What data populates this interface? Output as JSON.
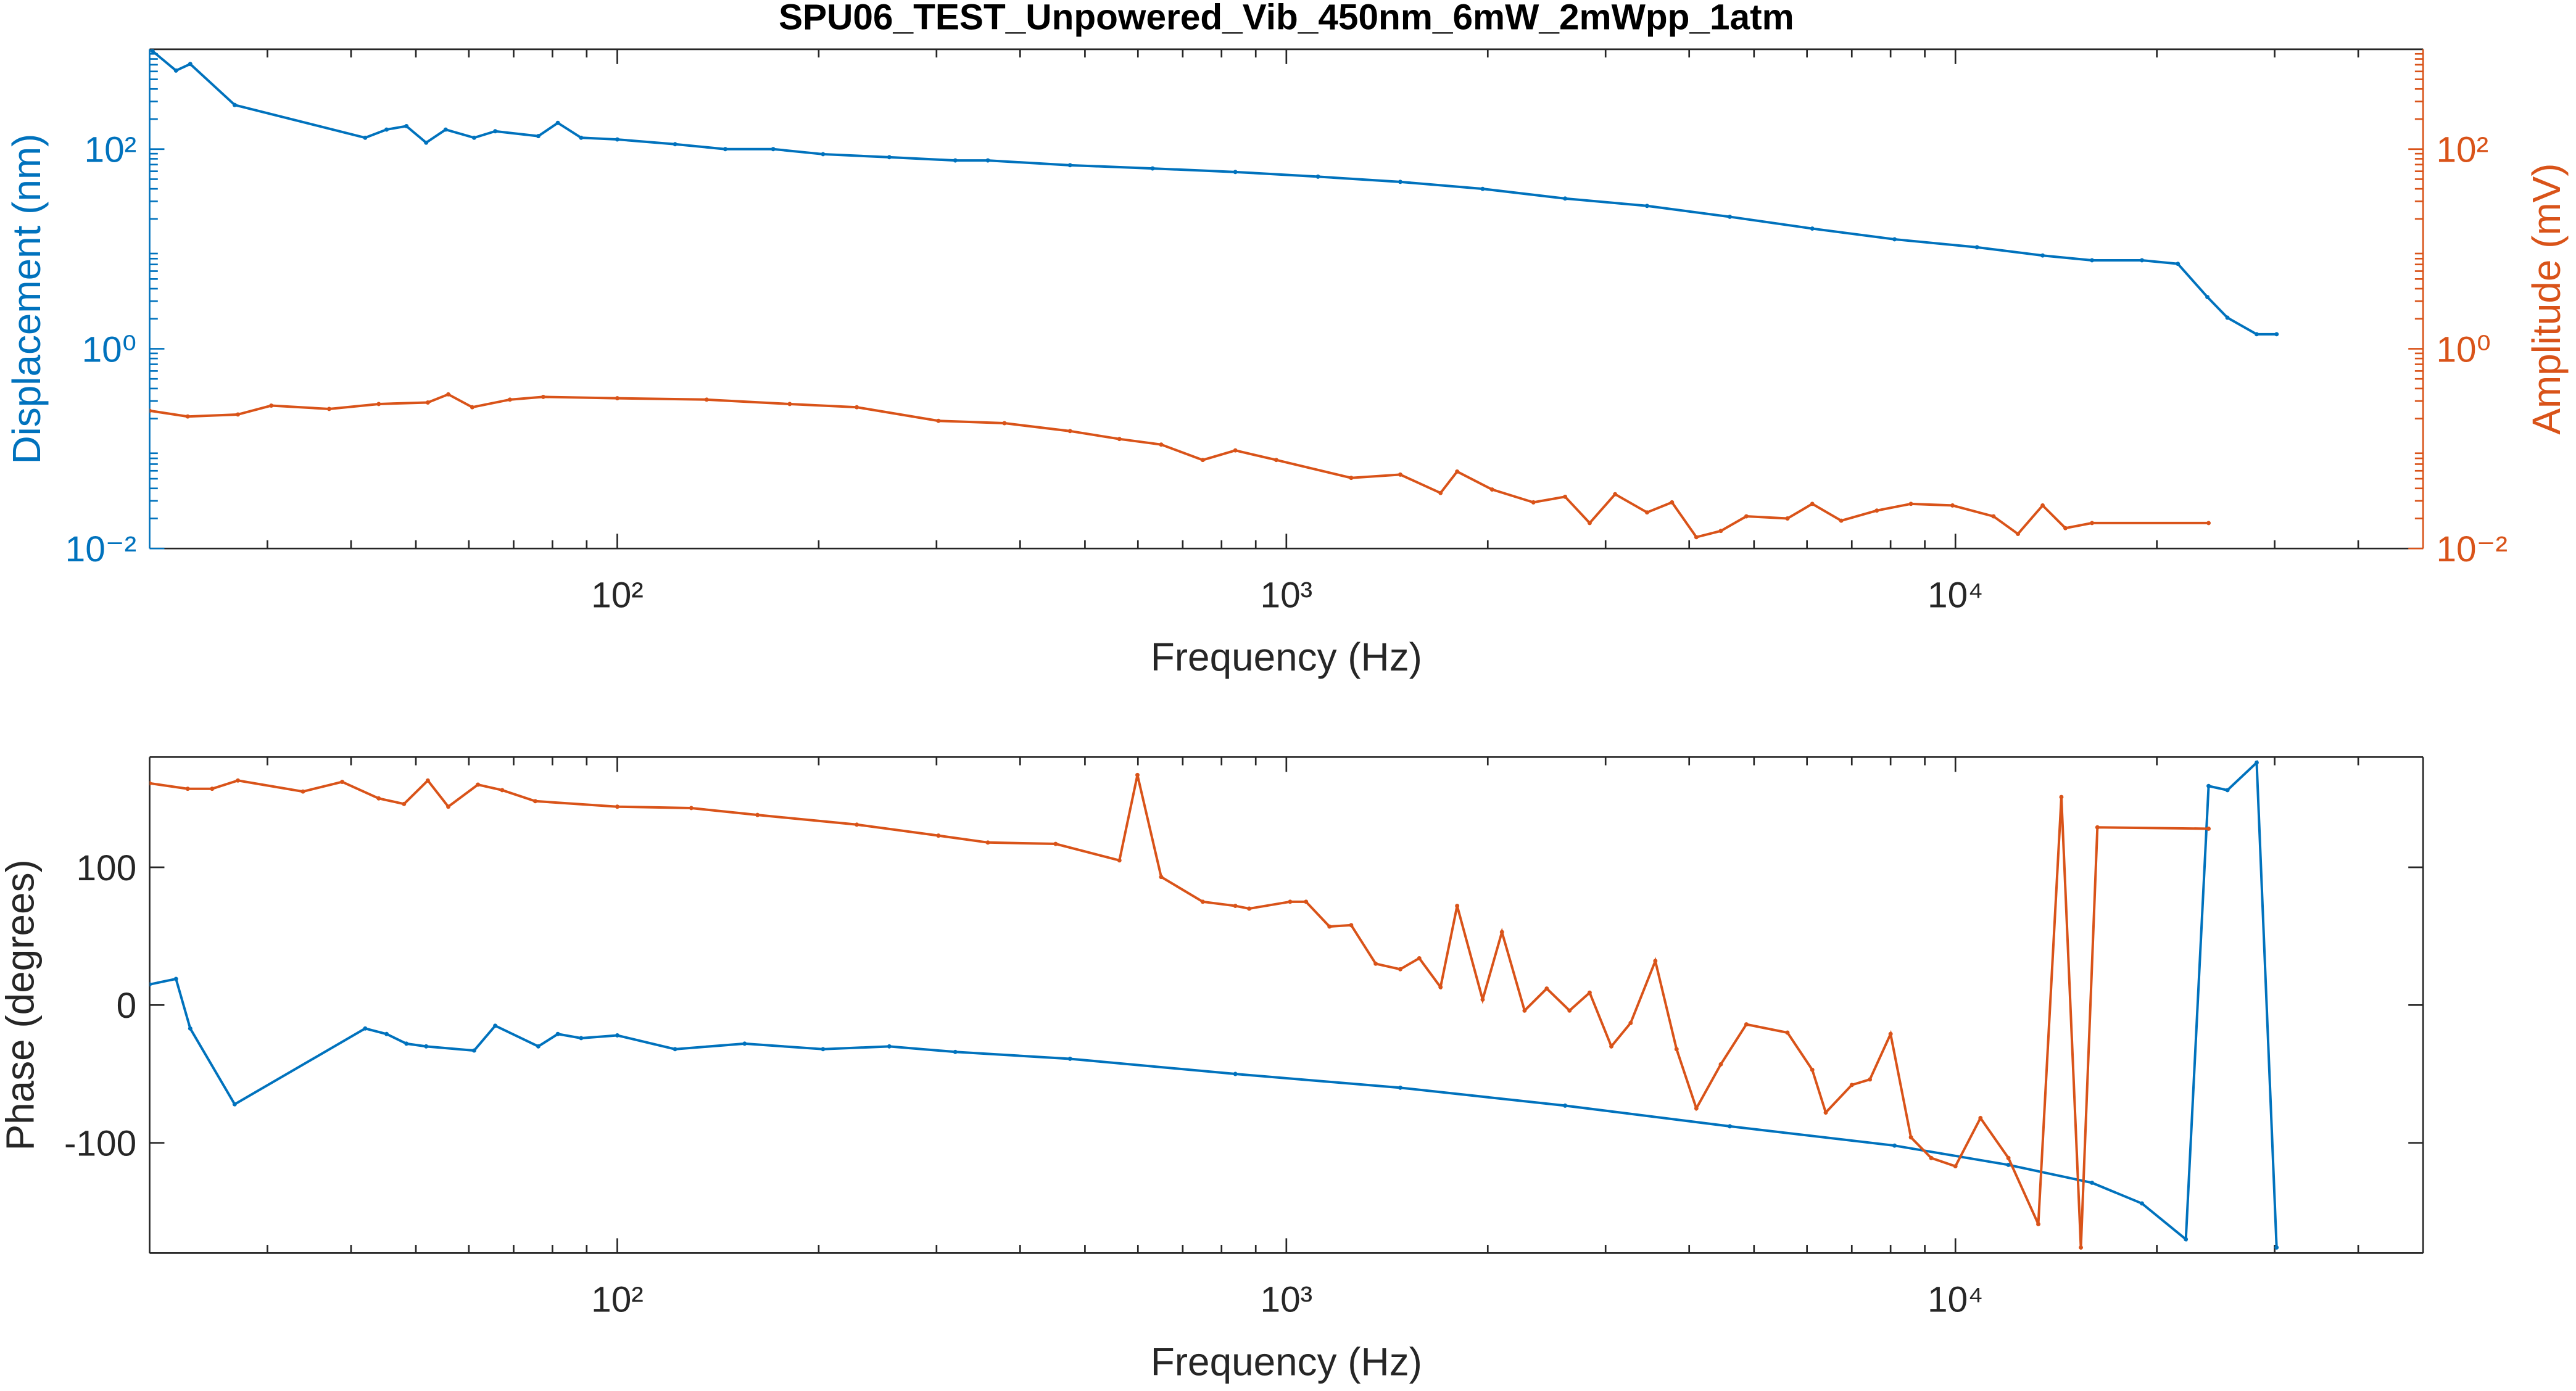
{
  "chart_data": [
    {
      "type": "line",
      "title": "SPU06_TEST_Unpowered_Vib_450nm_6mW_2mWpp_1atm",
      "xlabel": "Frequency (Hz)",
      "ylabel": "Displacement (nm)",
      "y2label": "Amplitude (mV)",
      "xscale": "log",
      "yscale": "log",
      "y2scale": "log",
      "xlim": [
        20,
        50000
      ],
      "xticks": [
        {
          "value": 100,
          "label": "10²"
        },
        {
          "value": 1000,
          "label": "10³"
        },
        {
          "value": 10000,
          "label": "10⁴"
        }
      ],
      "ylim": [
        0.01,
        1000
      ],
      "yticks": [
        {
          "value": 0.01,
          "label": "10⁻²"
        },
        {
          "value": 1,
          "label": "10⁰"
        },
        {
          "value": 100,
          "label": "10²"
        }
      ],
      "y2lim": [
        0.01,
        1000
      ],
      "y2ticks": [
        {
          "value": 0.01,
          "label": "10⁻²"
        },
        {
          "value": 1,
          "label": "10⁰"
        },
        {
          "value": 100,
          "label": "10²"
        }
      ],
      "series": [
        {
          "color": "#0072BD",
          "axis": "y",
          "x": [
            20.2,
            21.9,
            23,
            26.8,
            42,
            45.2,
            48.4,
            51.8,
            55.4,
            61.1,
            65.7,
            76.2,
            81.5,
            88.3,
            100,
            122,
            145,
            171,
            203,
            255,
            320,
            358,
            475,
            631,
            839,
            1115,
            1480,
            1965,
            2610,
            3460,
            4600,
            6110,
            8110,
            10770,
            13500,
            16000,
            19000,
            21500,
            23800,
            25500,
            28200,
            30200
          ],
          "values": [
            960,
            612,
            712,
            277,
            130,
            157,
            170,
            116,
            157,
            130,
            151,
            135,
            183,
            130,
            125,
            112,
            100,
            100,
            89,
            83,
            77,
            77,
            69,
            64,
            59,
            53,
            47,
            40,
            32,
            27,
            21,
            16,
            12.5,
            10.4,
            8.6,
            7.7,
            7.7,
            7.1,
            3.3,
            2.05,
            1.4,
            1.4
          ]
        },
        {
          "color": "#D95319",
          "axis": "y2",
          "x": [
            20,
            22.8,
            27.1,
            30.4,
            37.1,
            44,
            52.1,
            55.9,
            60.7,
            69.1,
            77.5,
            100,
            136,
            181,
            228,
            302,
            379,
            475,
            563,
            650,
            750,
            839,
            966,
            1250,
            1480,
            1700,
            1800,
            2030,
            2340,
            2610,
            2840,
            3100,
            3460,
            3770,
            4100,
            4460,
            4870,
            5610,
            6110,
            6750,
            7630,
            8580,
            9900,
            11400,
            12400,
            13500,
            14600,
            16000,
            23900
          ],
          "values": [
            0.24,
            0.21,
            0.22,
            0.27,
            0.25,
            0.28,
            0.29,
            0.35,
            0.26,
            0.31,
            0.33,
            0.32,
            0.31,
            0.28,
            0.26,
            0.19,
            0.18,
            0.15,
            0.125,
            0.11,
            0.077,
            0.096,
            0.077,
            0.051,
            0.055,
            0.036,
            0.059,
            0.039,
            0.029,
            0.033,
            0.018,
            0.035,
            0.023,
            0.029,
            0.013,
            0.015,
            0.021,
            0.02,
            0.028,
            0.019,
            0.024,
            0.028,
            0.027,
            0.021,
            0.014,
            0.027,
            0.016,
            0.018,
            0.018
          ]
        }
      ]
    },
    {
      "type": "line",
      "xlabel": "Frequency (Hz)",
      "ylabel": "Phase (degrees)",
      "xscale": "log",
      "xlim": [
        20,
        50000
      ],
      "xticks": [
        {
          "value": 100,
          "label": "10²"
        },
        {
          "value": 1000,
          "label": "10³"
        },
        {
          "value": 10000,
          "label": "10⁴"
        }
      ],
      "ylim": [
        -180,
        180
      ],
      "yticks": [
        -100,
        0,
        100
      ],
      "series": [
        {
          "color": "#0072BD",
          "axis": "y",
          "x": [
            20,
            21.9,
            23,
            26.8,
            42,
            45.2,
            48.4,
            51.8,
            61.1,
            65.7,
            76.2,
            81.5,
            88.3,
            100,
            122,
            155,
            203,
            255,
            320,
            475,
            839,
            1480,
            2610,
            4600,
            8110,
            12000,
            16000,
            19000,
            22100,
            23900,
            25500,
            28200,
            30200
          ],
          "values": [
            15,
            19,
            -17,
            -72,
            -17,
            -21,
            -28,
            -30,
            -33,
            -15,
            -30,
            -21,
            -24,
            -22,
            -32,
            -28,
            -32,
            -30,
            -34,
            -39,
            -50,
            -60,
            -73,
            -88,
            -102,
            -116,
            -129,
            -144,
            -170,
            159,
            156,
            176,
            -176
          ]
        },
        {
          "color": "#D95319",
          "axis": "y",
          "x": [
            20,
            22.8,
            24.8,
            27.1,
            33.9,
            38.8,
            44,
            48,
            52.1,
            55.9,
            61.9,
            67.3,
            75.4,
            100,
            129,
            162,
            228,
            302,
            358,
            452,
            563,
            599,
            650,
            750,
            839,
            880,
            1013,
            1070,
            1160,
            1250,
            1360,
            1480,
            1580,
            1700,
            1800,
            1965,
            2100,
            2270,
            2450,
            2650,
            2840,
            3060,
            3270,
            3560,
            3830,
            4100,
            4460,
            4870,
            5610,
            6110,
            6400,
            7000,
            7450,
            8000,
            8580,
            9200,
            10000,
            10900,
            12000,
            13300,
            14400,
            15400,
            16300,
            23900
          ],
          "values": [
            161,
            157,
            157,
            163,
            155,
            162,
            150,
            146,
            163,
            144,
            160,
            156,
            148,
            144,
            143,
            138,
            131,
            123,
            118,
            117,
            105,
            167,
            93,
            75,
            72,
            70,
            75,
            75,
            57,
            58,
            30,
            26,
            34,
            13,
            72,
            4,
            53,
            -4,
            12,
            -4,
            9,
            -30,
            -13,
            32,
            -32,
            -75,
            -43,
            -14,
            -20,
            -47,
            -78,
            -58,
            -54,
            -21,
            -96,
            -111,
            -117,
            -82,
            -111,
            -159,
            151,
            -176,
            129,
            128
          ]
        }
      ]
    }
  ]
}
